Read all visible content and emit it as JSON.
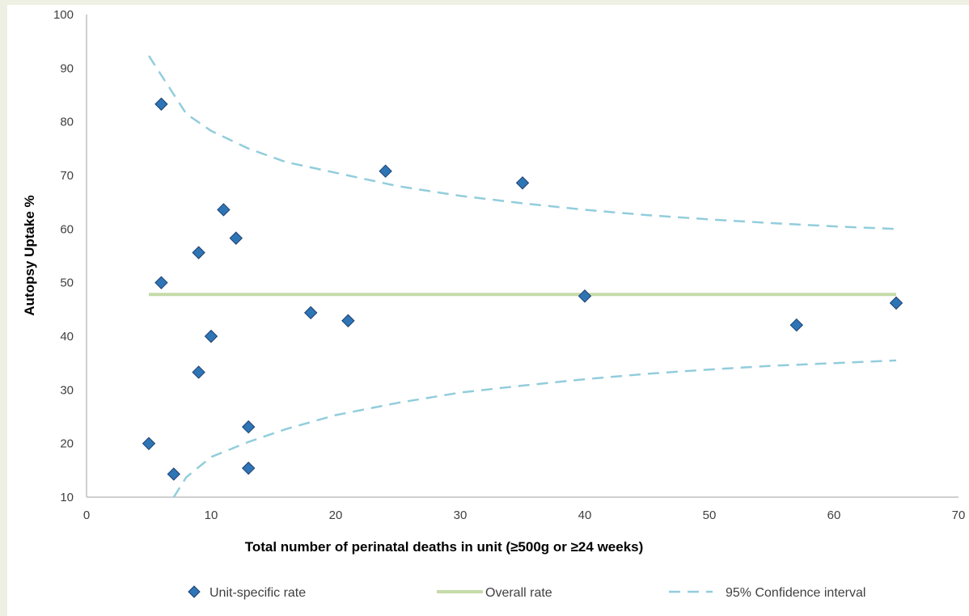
{
  "chart_data": {
    "type": "scatter",
    "title": "",
    "xlabel": "Total number of perinatal deaths in unit (≥500g or ≥24 weeks)",
    "ylabel": "Autopsy Uptake %",
    "xlim": [
      0,
      70
    ],
    "ylim": [
      10,
      100
    ],
    "xticks": [
      "0",
      "10",
      "20",
      "30",
      "40",
      "50",
      "60",
      "70"
    ],
    "yticks": [
      "10",
      "20",
      "30",
      "40",
      "50",
      "60",
      "70",
      "80",
      "90",
      "100"
    ],
    "grid": false,
    "legend_position": "bottom",
    "series": [
      {
        "name": "Unit-specific rate",
        "kind": "scatter",
        "marker": "diamond",
        "color": "#2e75b6",
        "points": [
          {
            "x": 5,
            "y": 20
          },
          {
            "x": 6,
            "y": 83.3
          },
          {
            "x": 6,
            "y": 50
          },
          {
            "x": 7,
            "y": 14.3
          },
          {
            "x": 9,
            "y": 55.6
          },
          {
            "x": 9,
            "y": 33.3
          },
          {
            "x": 10,
            "y": 40
          },
          {
            "x": 11,
            "y": 63.6
          },
          {
            "x": 12,
            "y": 58.3
          },
          {
            "x": 13,
            "y": 23.1
          },
          {
            "x": 13,
            "y": 15.4
          },
          {
            "x": 18,
            "y": 44.4
          },
          {
            "x": 21,
            "y": 42.9
          },
          {
            "x": 24,
            "y": 70.8
          },
          {
            "x": 35,
            "y": 68.6
          },
          {
            "x": 40,
            "y": 47.5
          },
          {
            "x": 57,
            "y": 42.1
          },
          {
            "x": 65,
            "y": 46.2
          }
        ]
      },
      {
        "name": "Overall rate",
        "kind": "line",
        "color": "#c5dba8",
        "points": [
          {
            "x": 5,
            "y": 47.8
          },
          {
            "x": 65,
            "y": 47.8
          }
        ]
      },
      {
        "name": "95% Confidence interval",
        "kind": "dashed-line",
        "color": "#92cddc",
        "upper": [
          {
            "x": 5,
            "y": 92.3
          },
          {
            "x": 8,
            "y": 81.5
          },
          {
            "x": 10,
            "y": 78.3
          },
          {
            "x": 13,
            "y": 75
          },
          {
            "x": 16,
            "y": 72.5
          },
          {
            "x": 20,
            "y": 70.5
          },
          {
            "x": 25,
            "y": 68
          },
          {
            "x": 30,
            "y": 66.2
          },
          {
            "x": 35,
            "y": 64.8
          },
          {
            "x": 40,
            "y": 63.6
          },
          {
            "x": 45,
            "y": 62.6
          },
          {
            "x": 50,
            "y": 61.8
          },
          {
            "x": 55,
            "y": 61.1
          },
          {
            "x": 60,
            "y": 60.5
          },
          {
            "x": 65,
            "y": 60
          }
        ],
        "lower": [
          {
            "x": 7,
            "y": 10
          },
          {
            "x": 8,
            "y": 13.7
          },
          {
            "x": 10,
            "y": 17.5
          },
          {
            "x": 13,
            "y": 20.3
          },
          {
            "x": 16,
            "y": 22.7
          },
          {
            "x": 20,
            "y": 25.3
          },
          {
            "x": 25,
            "y": 27.6
          },
          {
            "x": 30,
            "y": 29.5
          },
          {
            "x": 35,
            "y": 30.8
          },
          {
            "x": 40,
            "y": 32
          },
          {
            "x": 45,
            "y": 33
          },
          {
            "x": 50,
            "y": 33.8
          },
          {
            "x": 55,
            "y": 34.5
          },
          {
            "x": 60,
            "y": 35
          },
          {
            "x": 65,
            "y": 35.5
          }
        ]
      }
    ]
  }
}
